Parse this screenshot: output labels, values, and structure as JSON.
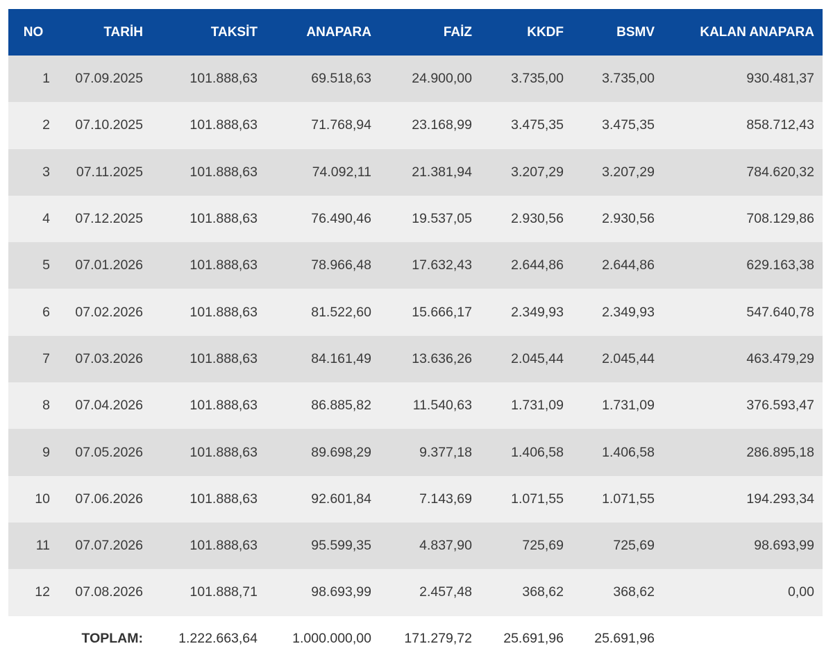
{
  "headers": [
    "NO",
    "TARİH",
    "TAKSİT",
    "ANAPARA",
    "FAİZ",
    "KKDF",
    "BSMV",
    "KALAN ANAPARA"
  ],
  "rows": [
    [
      "1",
      "07.09.2025",
      "101.888,63",
      "69.518,63",
      "24.900,00",
      "3.735,00",
      "3.735,00",
      "930.481,37"
    ],
    [
      "2",
      "07.10.2025",
      "101.888,63",
      "71.768,94",
      "23.168,99",
      "3.475,35",
      "3.475,35",
      "858.712,43"
    ],
    [
      "3",
      "07.11.2025",
      "101.888,63",
      "74.092,11",
      "21.381,94",
      "3.207,29",
      "3.207,29",
      "784.620,32"
    ],
    [
      "4",
      "07.12.2025",
      "101.888,63",
      "76.490,46",
      "19.537,05",
      "2.930,56",
      "2.930,56",
      "708.129,86"
    ],
    [
      "5",
      "07.01.2026",
      "101.888,63",
      "78.966,48",
      "17.632,43",
      "2.644,86",
      "2.644,86",
      "629.163,38"
    ],
    [
      "6",
      "07.02.2026",
      "101.888,63",
      "81.522,60",
      "15.666,17",
      "2.349,93",
      "2.349,93",
      "547.640,78"
    ],
    [
      "7",
      "07.03.2026",
      "101.888,63",
      "84.161,49",
      "13.636,26",
      "2.045,44",
      "2.045,44",
      "463.479,29"
    ],
    [
      "8",
      "07.04.2026",
      "101.888,63",
      "86.885,82",
      "11.540,63",
      "1.731,09",
      "1.731,09",
      "376.593,47"
    ],
    [
      "9",
      "07.05.2026",
      "101.888,63",
      "89.698,29",
      "9.377,18",
      "1.406,58",
      "1.406,58",
      "286.895,18"
    ],
    [
      "10",
      "07.06.2026",
      "101.888,63",
      "92.601,84",
      "7.143,69",
      "1.071,55",
      "1.071,55",
      "194.293,34"
    ],
    [
      "11",
      "07.07.2026",
      "101.888,63",
      "95.599,35",
      "4.837,90",
      "725,69",
      "725,69",
      "98.693,99"
    ],
    [
      "12",
      "07.08.2026",
      "101.888,71",
      "98.693,99",
      "2.457,48",
      "368,62",
      "368,62",
      "0,00"
    ]
  ],
  "totals": {
    "label": "TOPLAM:",
    "taksit": "1.222.663,64",
    "anapara": "1.000.000,00",
    "faiz": "171.279,72",
    "kkdf": "25.691,96",
    "bsmv": "25.691,96"
  },
  "colors": {
    "header_bg": "#0b4a9a",
    "row_odd": "#dedede",
    "row_even": "#efefef"
  }
}
